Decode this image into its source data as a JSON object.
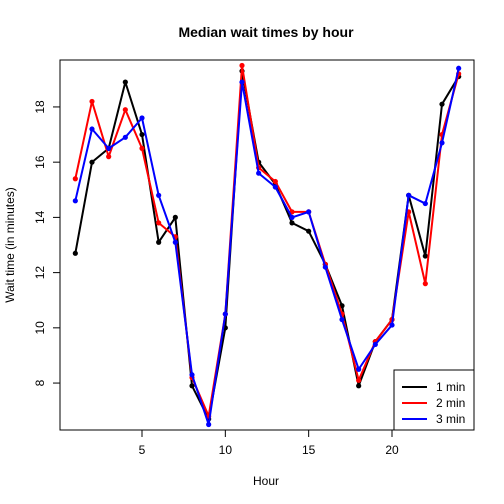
{
  "chart_data": {
    "type": "line",
    "title": "Median wait times by hour",
    "xlabel": "Hour",
    "ylabel": "Wait time (in minutes)",
    "xlim": [
      0.08,
      24.92
    ],
    "ylim": [
      6.3,
      19.7
    ],
    "xticks": [
      5,
      10,
      15,
      20
    ],
    "yticks": [
      8,
      10,
      12,
      14,
      16,
      18
    ],
    "grid": false,
    "legend": "bottom-right",
    "x": [
      1,
      2,
      3,
      4,
      5,
      6,
      7,
      8,
      9,
      10,
      11,
      12,
      13,
      14,
      15,
      16,
      17,
      18,
      19,
      20,
      21,
      22,
      23,
      24
    ],
    "series": [
      {
        "name": "1 min",
        "color": "#000000",
        "values": [
          12.7,
          16.0,
          16.5,
          18.9,
          17.0,
          13.1,
          14.0,
          7.9,
          6.7,
          10.0,
          19.3,
          16.0,
          15.2,
          13.8,
          13.5,
          12.3,
          10.8,
          7.9,
          9.5,
          10.3,
          14.8,
          12.6,
          18.1,
          19.1
        ]
      },
      {
        "name": "2 min",
        "color": "#ff0000",
        "values": [
          15.4,
          18.2,
          16.2,
          17.9,
          16.5,
          13.8,
          13.3,
          8.2,
          6.8,
          10.5,
          19.5,
          15.8,
          15.3,
          14.2,
          14.2,
          12.3,
          10.5,
          8.1,
          9.5,
          10.3,
          14.2,
          11.6,
          17.0,
          19.2
        ]
      },
      {
        "name": "3 min",
        "color": "#0000ff",
        "values": [
          14.6,
          17.2,
          16.5,
          16.9,
          17.6,
          14.8,
          13.1,
          8.3,
          6.5,
          10.5,
          18.9,
          15.6,
          15.1,
          14.0,
          14.2,
          12.2,
          10.3,
          8.5,
          9.4,
          10.1,
          14.8,
          14.5,
          16.7,
          19.4
        ]
      }
    ]
  }
}
